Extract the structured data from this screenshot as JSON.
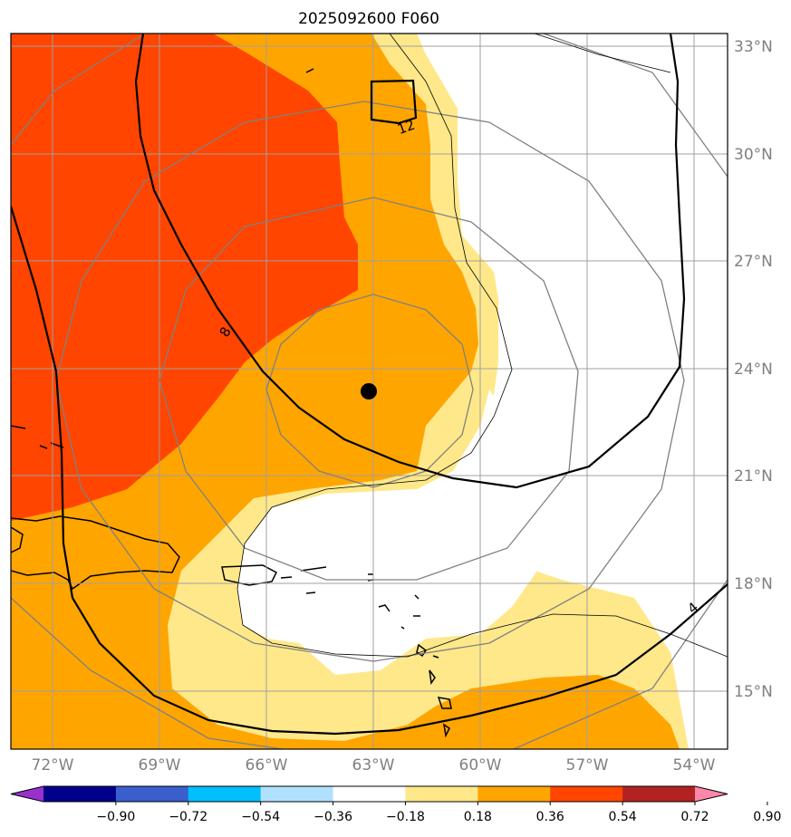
{
  "title": "2025092600 F060",
  "lat_ticks": [
    "33°N",
    "30°N",
    "27°N",
    "24°N",
    "21°N",
    "18°N",
    "15°N"
  ],
  "lon_ticks": [
    "72°W",
    "69°W",
    "66°W",
    "63°W",
    "60°W",
    "57°W",
    "54°W"
  ],
  "contour_labels": [
    "8",
    "12",
    "4"
  ],
  "colorbar": {
    "labels": [
      "−0.90",
      "−0.72",
      "−0.54",
      "−0.36",
      "−0.18",
      "0.18",
      "0.36",
      "0.54",
      "0.72",
      "0.90"
    ],
    "colors": [
      "#9932cc",
      "#00008b",
      "#3a5fcd",
      "#00bfff",
      "#b0e2ff",
      "#ffffff",
      "#ffe88a",
      "#ffa500",
      "#ff4500",
      "#b22222",
      "#ff88aa"
    ]
  },
  "colors": {
    "fill_018_036": "#ffe88a",
    "fill_036_054": "#ffa500",
    "fill_054_072": "#ff4500",
    "grid": "#a0a0a0",
    "rings": "#808080",
    "center_marker": "#000000"
  }
}
